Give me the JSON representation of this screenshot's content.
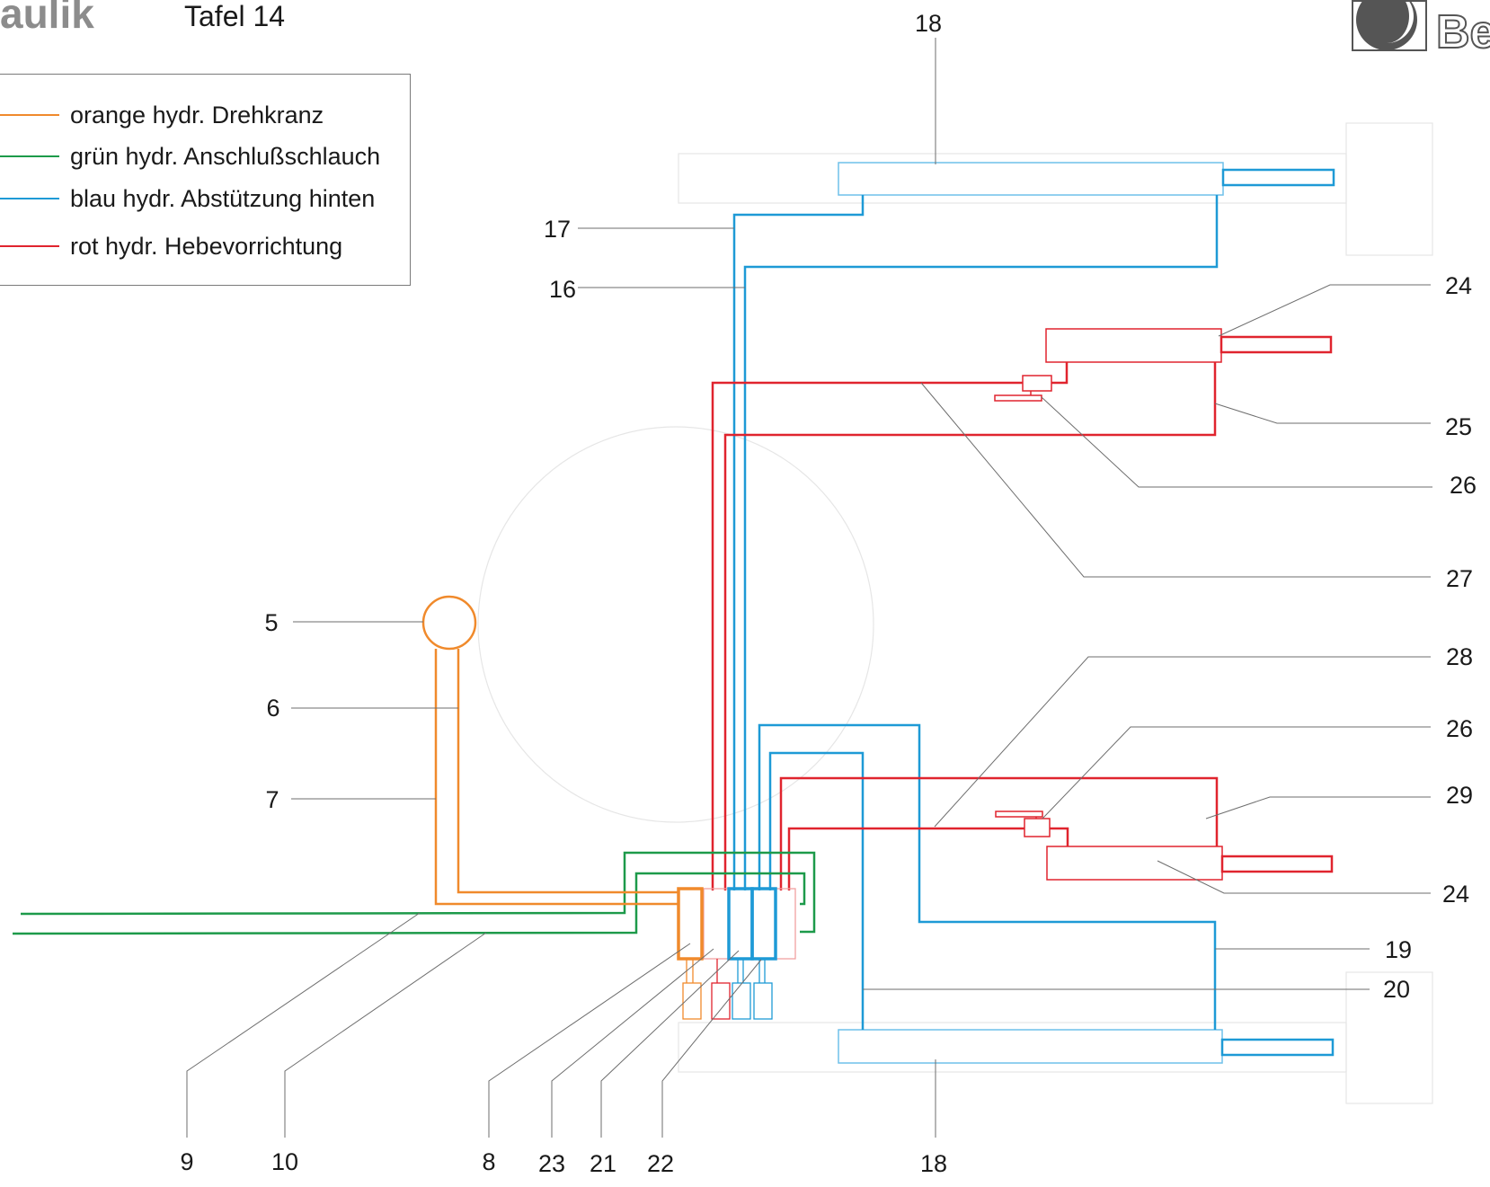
{
  "header": {
    "title": "aulik",
    "tafel": "Tafel 14",
    "logo_text": "Be"
  },
  "legend": {
    "items": [
      {
        "label": "orange hydr. Drehkranz",
        "color": "#f08a2c"
      },
      {
        "label": "grün hydr. Anschlußschlauch",
        "color": "#1d9a4a"
      },
      {
        "label": "blau hydr. Abstützung hinten",
        "color": "#1e9ad6"
      },
      {
        "label": "rot hydr. Hebevorrichtung",
        "color": "#e0242e"
      }
    ]
  },
  "colors": {
    "orange": "#f08a2c",
    "green": "#1d9a4a",
    "blue": "#1e9ad6",
    "red": "#e0242e",
    "leader": "#6e6e6e",
    "faint": "#e8e8e8"
  },
  "callouts": {
    "n18_top": "18",
    "n17": "17",
    "n16": "16",
    "n24_top": "24",
    "n25": "25",
    "n26_top": "26",
    "n27": "27",
    "n5": "5",
    "n6": "6",
    "n7": "7",
    "n28": "28",
    "n26_bottom": "26",
    "n29": "29",
    "n24_bottom": "24",
    "n19": "19",
    "n20": "20",
    "n9": "9",
    "n10": "10",
    "n8": "8",
    "n23": "23",
    "n21": "21",
    "n22": "22",
    "n18_bottom": "18"
  }
}
